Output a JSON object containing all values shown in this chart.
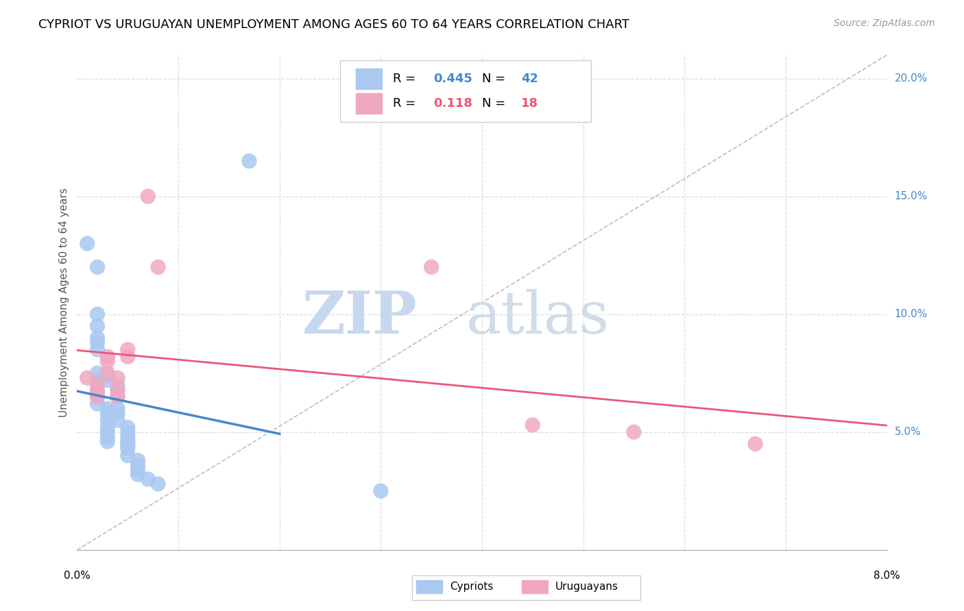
{
  "title": "CYPRIOT VS URUGUAYAN UNEMPLOYMENT AMONG AGES 60 TO 64 YEARS CORRELATION CHART",
  "source": "Source: ZipAtlas.com",
  "ylabel": "Unemployment Among Ages 60 to 64 years",
  "x_range": [
    0.0,
    0.08
  ],
  "y_range": [
    0.0,
    0.21
  ],
  "cypriot_color": "#aac8f0",
  "uruguayan_color": "#f0a8c0",
  "cypriot_line_color": "#4488cc",
  "uruguayan_line_color": "#ee5577",
  "diagonal_color": "#bbbbcc",
  "R_cypriot": "0.445",
  "N_cypriot": "42",
  "R_uruguayan": "0.118",
  "N_uruguayan": "18",
  "cypriot_points": [
    [
      0.001,
      0.13
    ],
    [
      0.002,
      0.12
    ],
    [
      0.002,
      0.1
    ],
    [
      0.002,
      0.095
    ],
    [
      0.002,
      0.09
    ],
    [
      0.002,
      0.088
    ],
    [
      0.002,
      0.085
    ],
    [
      0.002,
      0.075
    ],
    [
      0.002,
      0.072
    ],
    [
      0.002,
      0.068
    ],
    [
      0.002,
      0.065
    ],
    [
      0.002,
      0.062
    ],
    [
      0.003,
      0.06
    ],
    [
      0.003,
      0.058
    ],
    [
      0.003,
      0.055
    ],
    [
      0.003,
      0.052
    ],
    [
      0.003,
      0.05
    ],
    [
      0.003,
      0.048
    ],
    [
      0.003,
      0.046
    ],
    [
      0.003,
      0.074
    ],
    [
      0.003,
      0.072
    ],
    [
      0.004,
      0.07
    ],
    [
      0.004,
      0.068
    ],
    [
      0.004,
      0.065
    ],
    [
      0.004,
      0.06
    ],
    [
      0.004,
      0.058
    ],
    [
      0.004,
      0.055
    ],
    [
      0.005,
      0.052
    ],
    [
      0.005,
      0.05
    ],
    [
      0.005,
      0.048
    ],
    [
      0.005,
      0.046
    ],
    [
      0.005,
      0.045
    ],
    [
      0.005,
      0.043
    ],
    [
      0.005,
      0.04
    ],
    [
      0.006,
      0.038
    ],
    [
      0.006,
      0.036
    ],
    [
      0.006,
      0.034
    ],
    [
      0.006,
      0.032
    ],
    [
      0.007,
      0.03
    ],
    [
      0.008,
      0.028
    ],
    [
      0.017,
      0.165
    ],
    [
      0.03,
      0.025
    ]
  ],
  "uruguayan_points": [
    [
      0.001,
      0.073
    ],
    [
      0.002,
      0.07
    ],
    [
      0.002,
      0.067
    ],
    [
      0.002,
      0.065
    ],
    [
      0.003,
      0.082
    ],
    [
      0.003,
      0.08
    ],
    [
      0.003,
      0.075
    ],
    [
      0.004,
      0.073
    ],
    [
      0.004,
      0.068
    ],
    [
      0.004,
      0.065
    ],
    [
      0.005,
      0.085
    ],
    [
      0.005,
      0.082
    ],
    [
      0.007,
      0.15
    ],
    [
      0.008,
      0.12
    ],
    [
      0.035,
      0.12
    ],
    [
      0.045,
      0.053
    ],
    [
      0.055,
      0.05
    ],
    [
      0.067,
      0.045
    ]
  ],
  "watermark_zip": "ZIP",
  "watermark_atlas": "atlas",
  "background_color": "#ffffff",
  "grid_color": "#dddddd",
  "right_tick_color": "#4488cc",
  "legend_border_color": "#cccccc"
}
